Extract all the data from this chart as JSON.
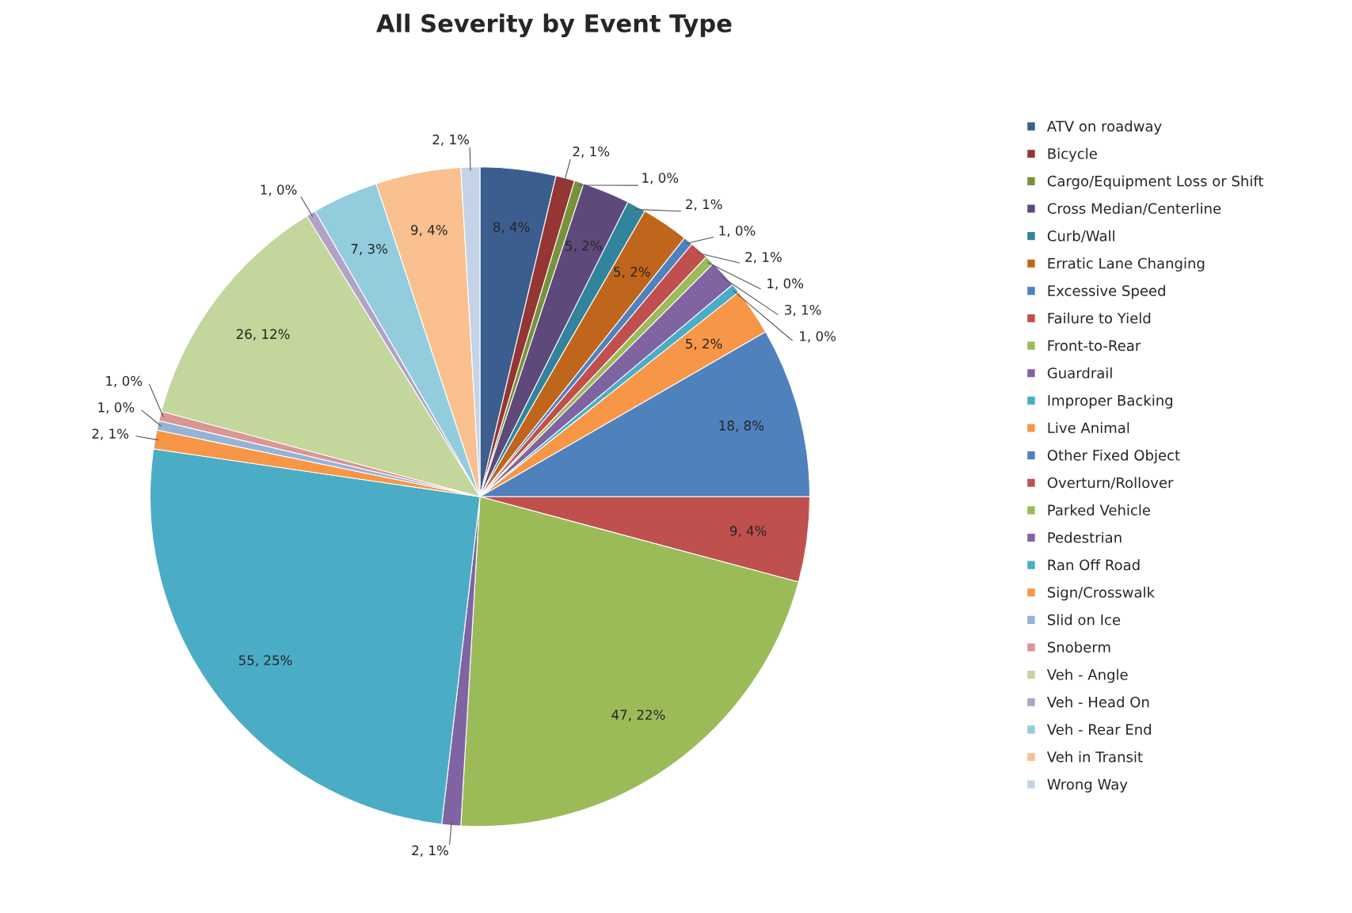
{
  "chart_data": {
    "type": "pie",
    "title": "All Severity by Event Type",
    "categories": [
      "ATV on roadway",
      "Bicycle",
      "Cargo/Equipment Loss or Shift",
      "Cross Median/Centerline",
      "Curb/Wall",
      "Erratic Lane Changing",
      "Excessive Speed",
      "Failure to Yield",
      "Front-to-Rear",
      "Guardrail",
      "Improper Backing",
      "Live Animal",
      "Other Fixed Object",
      "Overturn/Rollover",
      "Parked Vehicle",
      "Pedestrian",
      "Ran Off Road",
      "Sign/Crosswalk",
      "Slid on Ice",
      "Snoberm",
      "Veh - Angle",
      "Veh - Head On",
      "Veh - Rear End",
      "Veh in Transit",
      "Wrong Way"
    ],
    "values": [
      8,
      2,
      1,
      5,
      2,
      5,
      1,
      2,
      1,
      3,
      1,
      5,
      18,
      9,
      47,
      2,
      55,
      2,
      1,
      1,
      26,
      1,
      7,
      9,
      2
    ],
    "colors": [
      "#3b5e8f",
      "#943634",
      "#76923c",
      "#5f497a",
      "#31849b",
      "#c0661c",
      "#4f81bd",
      "#c0504d",
      "#9bbb59",
      "#8064a2",
      "#4bacc6",
      "#f79646",
      "#4f81bd",
      "#c0504d",
      "#9bbb59",
      "#8064a2",
      "#4bacc6",
      "#f79646",
      "#95b3d7",
      "#d99694",
      "#c3d69b",
      "#b2a2c7",
      "#93cddd",
      "#fac090",
      "#c5d3e8"
    ],
    "value_labels": [
      "8, 4%",
      "2, 1%",
      "1, 0%",
      "5, 2%",
      "2, 1%",
      "5, 2%",
      "1, 0%",
      "2, 1%",
      "1, 0%",
      "3, 1%",
      "1, 0%",
      "5, 2%",
      "18, 8%",
      "9, 4%",
      "47, 22%",
      "2, 1%",
      "55, 25%",
      "2, 1%",
      "1, 0%",
      "1, 0%",
      "26, 12%",
      "1, 0%",
      "7, 3%",
      "9, 4%",
      "2, 1%"
    ],
    "legend": "right"
  }
}
